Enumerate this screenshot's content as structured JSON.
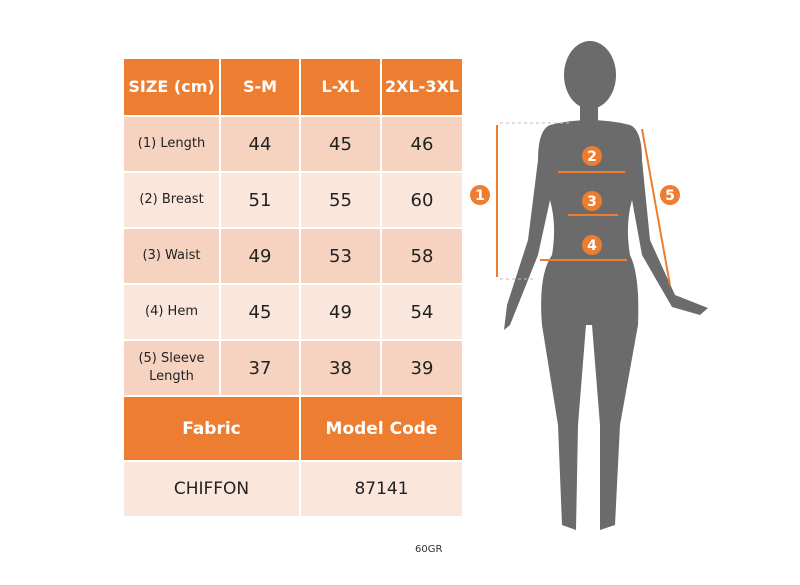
{
  "table": {
    "header": [
      "SIZE (cm)",
      "S-M",
      "L-XL",
      "2XL-3XL"
    ],
    "rows": [
      {
        "label": "(1) Length",
        "values": [
          "44",
          "45",
          "46"
        ]
      },
      {
        "label": "(2) Breast",
        "values": [
          "51",
          "55",
          "60"
        ]
      },
      {
        "label": "(3) Waist",
        "values": [
          "49",
          "53",
          "58"
        ]
      },
      {
        "label": "(4) Hem",
        "values": [
          "45",
          "49",
          "54"
        ]
      },
      {
        "label": "(5) Sleeve Length",
        "values": [
          "37",
          "38",
          "39"
        ]
      }
    ],
    "fabric_label": "Fabric",
    "model_code_label": "Model Code",
    "fabric": "CHIFFON",
    "model_code": "87141"
  },
  "figure": {
    "markers": [
      "1",
      "2",
      "3",
      "4",
      "5"
    ]
  },
  "footer_code": "60GR",
  "colors": {
    "accent": "#ED7D31",
    "row_dark": "#F6D2C1",
    "row_light": "#FBE6DC",
    "silhouette": "#6b6b6b"
  }
}
